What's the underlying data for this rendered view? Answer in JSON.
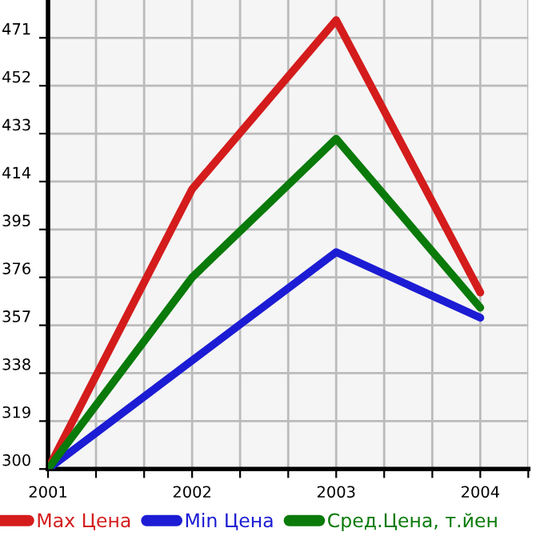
{
  "chart_data": {
    "type": "line",
    "x": [
      2001,
      2002,
      2003,
      2004
    ],
    "series": [
      {
        "name": "Max Цена",
        "color": "#d41c1c",
        "values": [
          300,
          411,
          478,
          370
        ]
      },
      {
        "name": "Min Цена",
        "color": "#1c1cd4",
        "values": [
          300,
          343,
          386,
          360
        ]
      },
      {
        "name": "Сред.Цена, т.йен",
        "color": "#0a7a0a",
        "values": [
          300,
          376,
          431,
          364
        ]
      }
    ],
    "xlim": [
      2001,
      2004.333
    ],
    "xticks": [
      2001,
      {
        "value": 2001.333,
        "label": null
      },
      {
        "value": 2001.667,
        "label": null
      },
      2002,
      {
        "value": 2002.333,
        "label": null
      },
      {
        "value": 2002.667,
        "label": null
      },
      2003,
      {
        "value": 2003.333,
        "label": null
      },
      {
        "value": 2003.667,
        "label": null
      },
      2004,
      {
        "value": 2004.333,
        "label": null
      }
    ],
    "ylim": [
      300,
      486
    ],
    "yticks": [
      300,
      319,
      338,
      357,
      376,
      395,
      414,
      433,
      452,
      471
    ],
    "grid": true,
    "legend": "bottom",
    "marker": "none",
    "line_style": "solid"
  }
}
